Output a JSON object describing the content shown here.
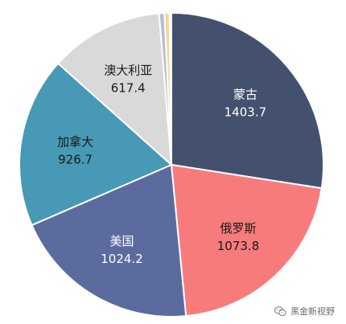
{
  "chart_data": {
    "type": "pie",
    "title": "",
    "slices": [
      {
        "label": "蒙古",
        "value": 1403.7,
        "color": "#44516e",
        "text_color": "#ffffff",
        "show_label": true
      },
      {
        "label": "俄罗斯",
        "value": 1073.8,
        "color": "#f87b7b",
        "text_color": "#1a1a1a",
        "show_label": true
      },
      {
        "label": "美国",
        "value": 1024.2,
        "color": "#5b6b9e",
        "text_color": "#ffffff",
        "show_label": true
      },
      {
        "label": "加拿大",
        "value": 926.7,
        "color": "#4799b5",
        "text_color": "#1a1a1a",
        "show_label": true
      },
      {
        "label": "澳大利亚",
        "value": 617.4,
        "color": "#d9d9d9",
        "text_color": "#1a1a1a",
        "show_label": true
      },
      {
        "label": "",
        "value": 29,
        "color": "#b4bfcf",
        "text_color": "#1a1a1a",
        "show_label": false
      },
      {
        "label": "",
        "value": 27,
        "color": "#ffd38f",
        "text_color": "#1a1a1a",
        "show_label": false
      },
      {
        "label": "",
        "value": 5,
        "color": "#c0392b",
        "text_color": "#1a1a1a",
        "show_label": false
      },
      {
        "label": "",
        "value": 5,
        "color": "#f0a844",
        "text_color": "#1a1a1a",
        "show_label": false
      }
    ],
    "start_angle": "12 o'clock",
    "direction": "clockwise",
    "legend": "none"
  },
  "watermark": {
    "text": "黑金新视野",
    "icon": "wechat-icon"
  }
}
